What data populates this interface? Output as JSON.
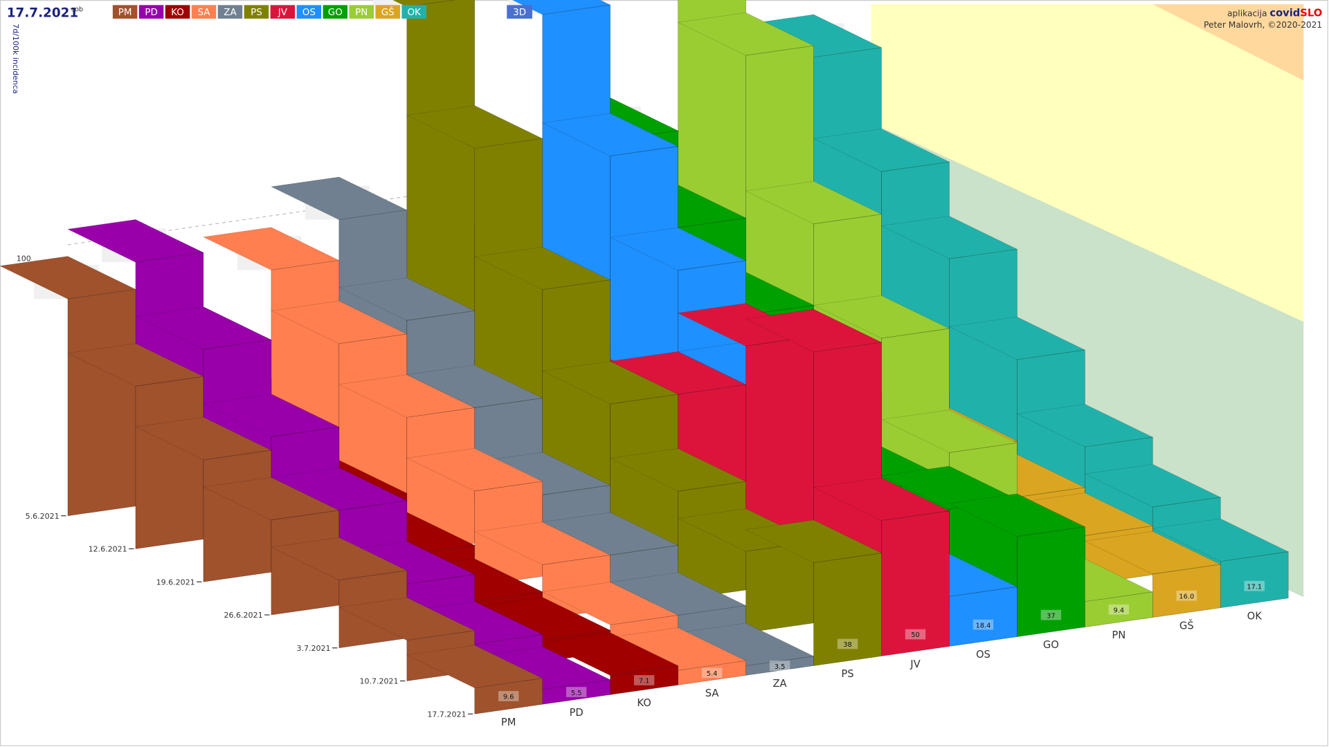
{
  "chart_data": {
    "type": "bar3d",
    "title": "17.7.2021",
    "subtitle": "sob",
    "y_label": "7d/100k incidenca",
    "toggle": "3D",
    "app_prefix": "aplikacija",
    "app_name_a": "covid",
    "app_name_b": "SLO",
    "author": "Peter Malovrh, ©2020-2021",
    "x": [
      "5.6.2021",
      "12.6.2021",
      "19.6.2021",
      "26.6.2021",
      "3.7.2021",
      "10.7.2021",
      "17.7.2021"
    ],
    "ylim": [
      0,
      250
    ],
    "yticks": [
      100
    ],
    "series": [
      {
        "name": "PM",
        "color": "#a0522d",
        "values": [
          80,
          60,
          45,
          35,
          25,
          15,
          9.6
        ]
      },
      {
        "name": "PD",
        "color": "#9900aa",
        "values": [
          90,
          70,
          50,
          35,
          20,
          10,
          5.5
        ]
      },
      {
        "name": "KO",
        "color": "#a00000",
        "values": [
          40,
          30,
          22,
          15,
          10,
          8,
          7.1
        ]
      },
      {
        "name": "SA",
        "color": "#ff7f50",
        "values": [
          80,
          65,
          50,
          35,
          20,
          10,
          5.4
        ]
      },
      {
        "name": "ZA",
        "color": "#708090",
        "values": [
          95,
          70,
          50,
          30,
          20,
          10,
          3.5
        ]
      },
      {
        "name": "PS",
        "color": "#808000",
        "values": [
          170,
          130,
          90,
          60,
          40,
          30,
          38
        ]
      },
      {
        "name": "JV",
        "color": "#dc143c",
        "values": [
          70,
          50,
          45,
          60,
          90,
          100,
          50
        ]
      },
      {
        "name": "OS",
        "color": "#1e90ff",
        "values": [
          160,
          120,
          90,
          60,
          40,
          25,
          18.4
        ]
      },
      {
        "name": "GO",
        "color": "#00a000",
        "values": [
          110,
          90,
          70,
          50,
          30,
          35,
          37
        ]
      },
      {
        "name": "PN",
        "color": "#9acd32",
        "values": [
          210,
          150,
          100,
          70,
          40,
          20,
          9.4
        ]
      },
      {
        "name": "GŠ",
        "color": "#daa520",
        "values": [
          40,
          35,
          30,
          25,
          20,
          18,
          16.0
        ],
        "value_labels": [
          null,
          null,
          null,
          null,
          null,
          null,
          "16.0"
        ]
      },
      {
        "name": "OK",
        "color": "#20b2aa",
        "values": [
          130,
          100,
          80,
          55,
          35,
          25,
          17.1
        ]
      }
    ]
  }
}
